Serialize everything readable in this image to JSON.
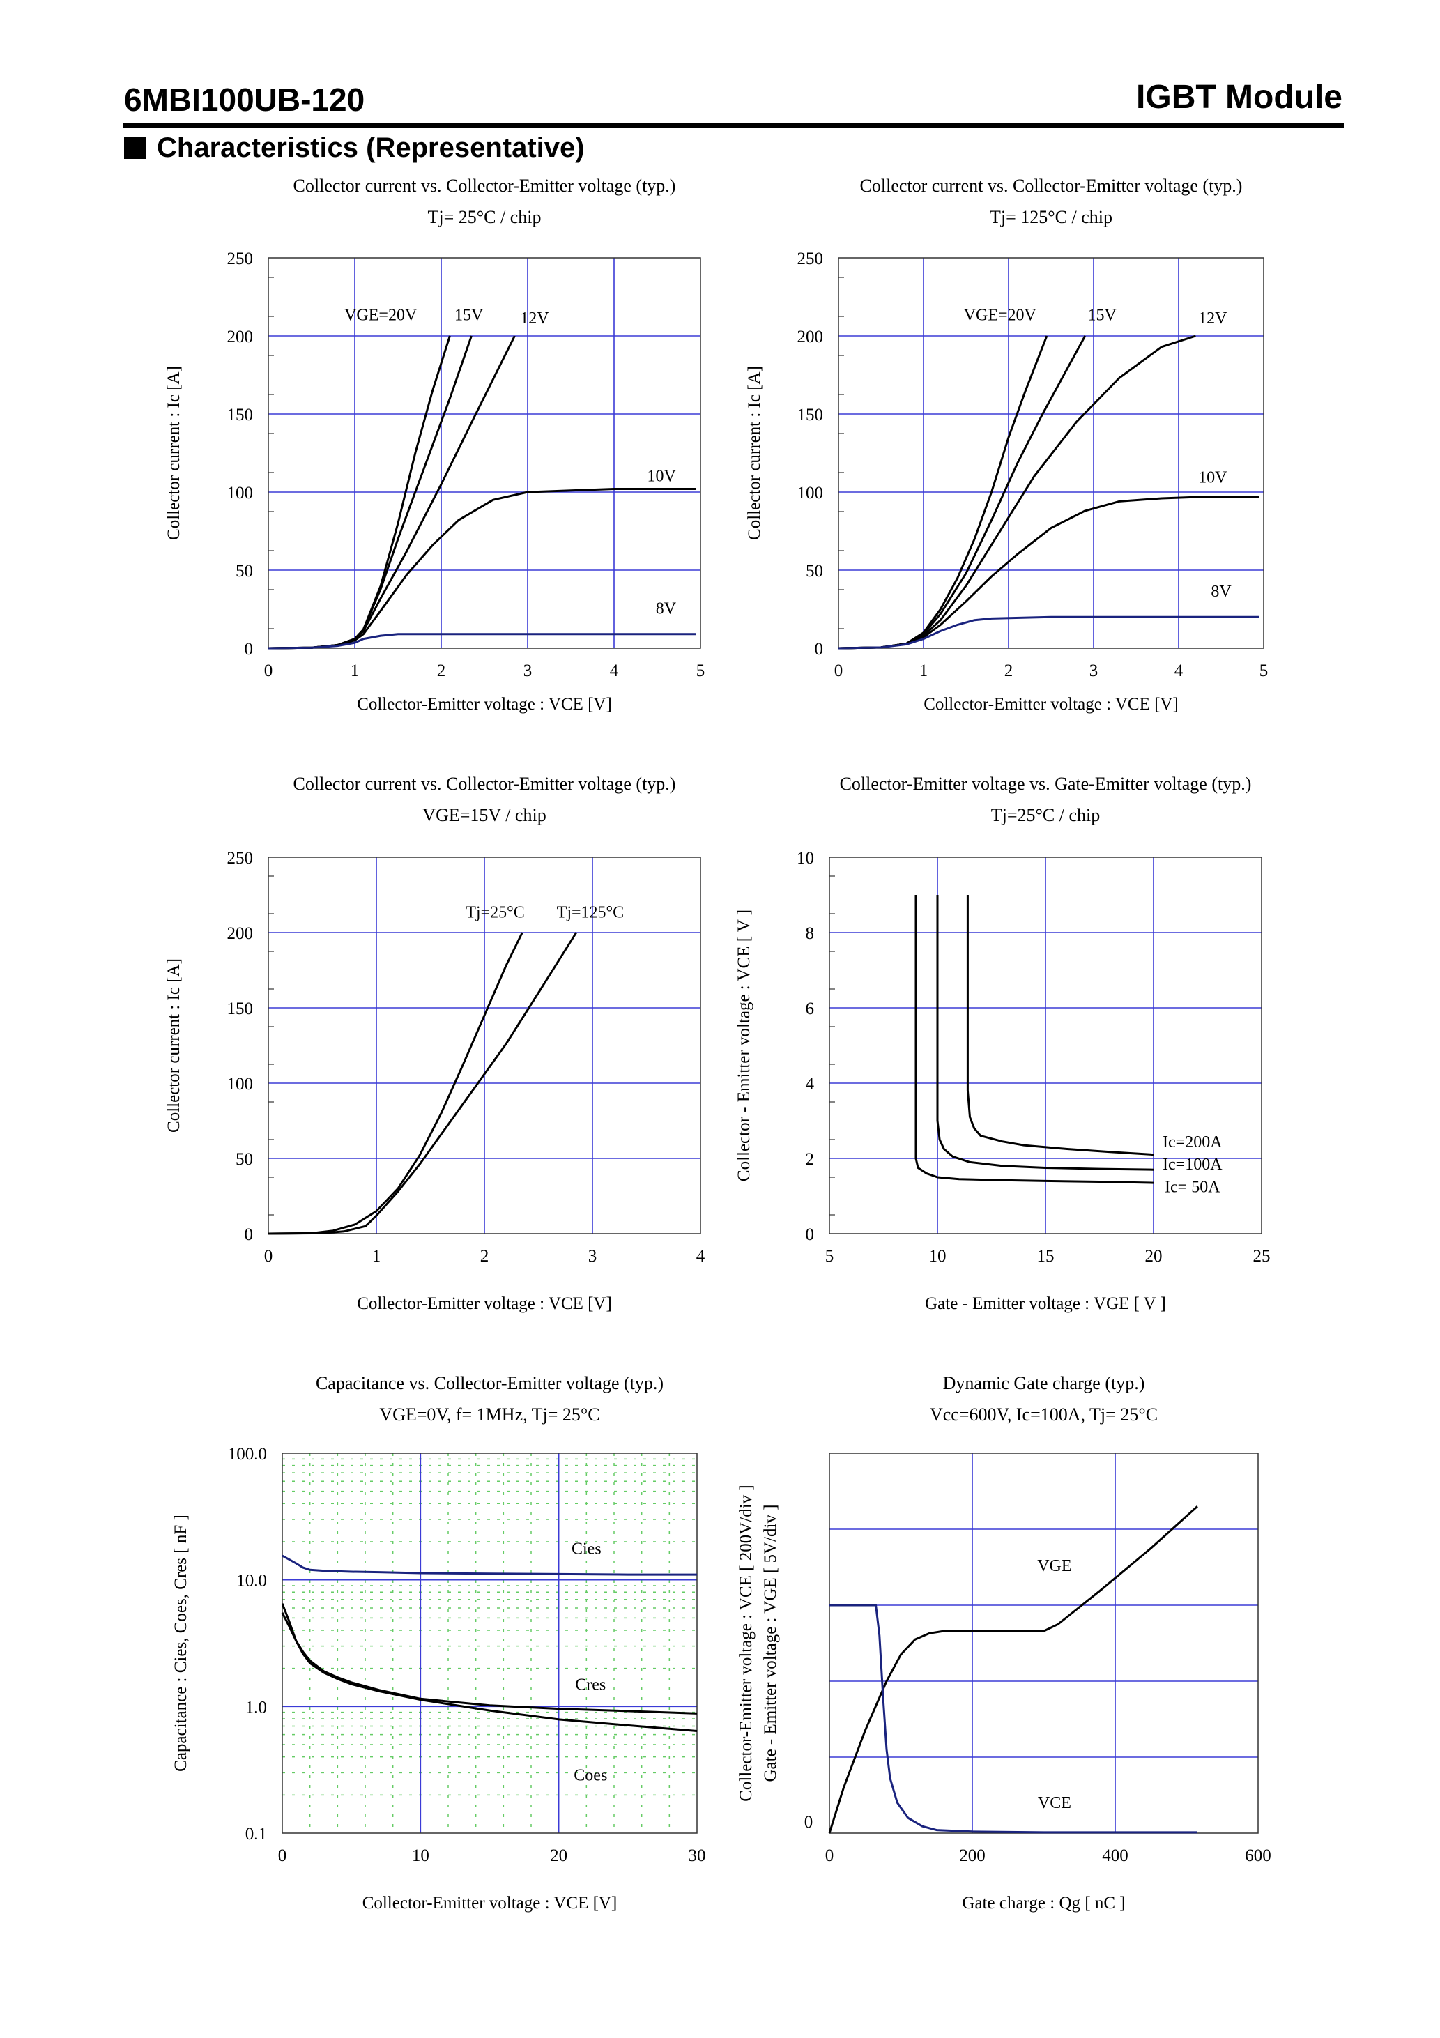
{
  "header": {
    "part_number": "6MBI100UB-120",
    "device_type": "IGBT Module",
    "section_title": "Characteristics (Representative)"
  },
  "colors": {
    "grid": "#3b3bd6",
    "curve": "#000000",
    "curve_blue": "#1a237e",
    "minor_grid": "#66cc66"
  },
  "chart_data": [
    {
      "id": "c1",
      "type": "line",
      "title": "Collector current vs. Collector-Emitter voltage (typ.)",
      "subtitle": "Tj= 25°C / chip",
      "xlabel": "Collector-Emitter voltage : VCE [V]",
      "ylabel": "Collector current : Ic [A]",
      "xlim": [
        0,
        5
      ],
      "ylim": [
        0,
        250
      ],
      "xticks": [
        "0",
        "1",
        "2",
        "3",
        "4",
        "5"
      ],
      "yticks": [
        "0",
        "50",
        "100",
        "150",
        "200",
        "250"
      ],
      "series": [
        {
          "name": "VGE=20V",
          "x": [
            0,
            0.5,
            0.8,
            1.0,
            1.1,
            1.3,
            1.5,
            1.7,
            1.9,
            2.1
          ],
          "y": [
            0,
            0.3,
            2,
            6,
            12,
            40,
            80,
            125,
            165,
            200
          ]
        },
        {
          "name": "15V",
          "x": [
            0,
            0.5,
            0.8,
            1.0,
            1.1,
            1.3,
            1.5,
            1.8,
            2.1,
            2.35
          ],
          "y": [
            0,
            0.3,
            2,
            6,
            12,
            38,
            70,
            115,
            160,
            200
          ]
        },
        {
          "name": "12V",
          "x": [
            0,
            0.5,
            0.8,
            1.0,
            1.1,
            1.3,
            1.6,
            2.0,
            2.4,
            2.85
          ],
          "y": [
            0,
            0.3,
            2,
            6,
            11,
            32,
            62,
            105,
            150,
            200
          ]
        },
        {
          "name": "10V",
          "x": [
            0,
            0.5,
            0.8,
            1.0,
            1.1,
            1.3,
            1.6,
            1.9,
            2.2,
            2.6,
            3.0,
            3.5,
            4.0,
            4.5,
            4.95
          ],
          "y": [
            0,
            0.3,
            2,
            5,
            9,
            24,
            47,
            66,
            82,
            95,
            100,
            101,
            102,
            102,
            102
          ]
        },
        {
          "name": "8V",
          "x": [
            0,
            0.5,
            0.8,
            1.0,
            1.1,
            1.3,
            1.5,
            2,
            3,
            4,
            4.95
          ],
          "y": [
            0,
            0.3,
            1.5,
            3.5,
            6,
            8,
            9,
            9,
            9,
            9,
            9
          ]
        }
      ],
      "labels": [
        {
          "text": "VGE=20V",
          "x": 1.3,
          "y": 210
        },
        {
          "text": "15V",
          "x": 2.32,
          "y": 210
        },
        {
          "text": "12V",
          "x": 3.08,
          "y": 208
        },
        {
          "text": "10V",
          "x": 4.55,
          "y": 107
        },
        {
          "text": "8V",
          "x": 4.6,
          "y": 22
        }
      ]
    },
    {
      "id": "c2",
      "type": "line",
      "title": "Collector current vs. Collector-Emitter voltage (typ.)",
      "subtitle": "Tj= 125°C / chip",
      "xlabel": "Collector-Emitter voltage : VCE [V]",
      "ylabel": "Collector current : Ic [A]",
      "xlim": [
        0,
        5
      ],
      "ylim": [
        0,
        250
      ],
      "xticks": [
        "0",
        "1",
        "2",
        "3",
        "4",
        "5"
      ],
      "yticks": [
        "0",
        "50",
        "100",
        "150",
        "200",
        "250"
      ],
      "series": [
        {
          "name": "VGE=20V",
          "x": [
            0,
            0.5,
            0.8,
            1.0,
            1.2,
            1.4,
            1.6,
            1.8,
            2.0,
            2.2,
            2.45
          ],
          "y": [
            0,
            0.5,
            3,
            10,
            25,
            45,
            70,
            100,
            135,
            165,
            200
          ]
        },
        {
          "name": "15V",
          "x": [
            0,
            0.5,
            0.8,
            1.0,
            1.2,
            1.5,
            1.8,
            2.1,
            2.4,
            2.7,
            2.9
          ],
          "y": [
            0,
            0.5,
            3,
            9,
            22,
            48,
            82,
            118,
            150,
            180,
            200
          ]
        },
        {
          "name": "12V",
          "x": [
            0,
            0.5,
            0.8,
            1.0,
            1.2,
            1.5,
            1.9,
            2.3,
            2.8,
            3.3,
            3.8,
            4.2
          ],
          "y": [
            0,
            0.5,
            3,
            8,
            18,
            40,
            75,
            110,
            145,
            173,
            193,
            200
          ]
        },
        {
          "name": "10V",
          "x": [
            0,
            0.5,
            0.8,
            1.0,
            1.2,
            1.5,
            1.8,
            2.1,
            2.5,
            2.9,
            3.3,
            3.8,
            4.3,
            4.95
          ],
          "y": [
            0,
            0.5,
            3,
            7,
            15,
            30,
            46,
            60,
            77,
            88,
            94,
            96,
            97,
            97
          ]
        },
        {
          "name": "8V",
          "x": [
            0,
            0.5,
            0.8,
            1.0,
            1.2,
            1.4,
            1.6,
            1.8,
            2.5,
            3.5,
            4.95
          ],
          "y": [
            0,
            0.5,
            2.5,
            6,
            11,
            15,
            18,
            19,
            20,
            20,
            20
          ]
        }
      ],
      "labels": [
        {
          "text": "VGE=20V",
          "x": 1.9,
          "y": 210
        },
        {
          "text": "15V",
          "x": 3.1,
          "y": 210
        },
        {
          "text": "12V",
          "x": 4.4,
          "y": 208
        },
        {
          "text": "10V",
          "x": 4.4,
          "y": 106
        },
        {
          "text": "8V",
          "x": 4.5,
          "y": 33
        }
      ]
    },
    {
      "id": "c3",
      "type": "line",
      "title": "Collector current vs. Collector-Emitter voltage (typ.)",
      "subtitle": "VGE=15V / chip",
      "xlabel": "Collector-Emitter voltage : VCE [V]",
      "ylabel": "Collector current : Ic [A]",
      "xlim": [
        0,
        4
      ],
      "ylim": [
        0,
        250
      ],
      "xticks": [
        "0",
        "1",
        "2",
        "3",
        "4"
      ],
      "yticks": [
        "0",
        "50",
        "100",
        "150",
        "200",
        "250"
      ],
      "series": [
        {
          "name": "Tj=25°C",
          "x": [
            0,
            0.4,
            0.6,
            0.8,
            1.0,
            1.2,
            1.4,
            1.6,
            1.8,
            2.0,
            2.2,
            2.35
          ],
          "y": [
            0,
            0.3,
            2,
            6,
            15,
            30,
            52,
            80,
            112,
            145,
            178,
            200
          ]
        },
        {
          "name": "Tj=125°C",
          "x": [
            0,
            0.5,
            0.7,
            0.9,
            1.0,
            1.2,
            1.4,
            1.6,
            1.9,
            2.2,
            2.5,
            2.85
          ],
          "y": [
            0,
            0.3,
            1.5,
            5,
            12,
            28,
            46,
            66,
            96,
            126,
            160,
            200
          ]
        }
      ],
      "labels": [
        {
          "text": "Tj=25°C",
          "x": 2.1,
          "y": 210
        },
        {
          "text": "Tj=125°C",
          "x": 2.98,
          "y": 210
        }
      ]
    },
    {
      "id": "c4",
      "type": "line",
      "title": "Collector-Emitter voltage vs. Gate-Emitter voltage (typ.)",
      "subtitle": "Tj=25°C / chip",
      "xlabel": "Gate - Emitter voltage : VGE [ V ]",
      "ylabel": "Collector - Emitter voltage : VCE [ V ]",
      "xlim": [
        5,
        25
      ],
      "ylim": [
        0,
        10
      ],
      "xticks": [
        "5",
        "10",
        "15",
        "20",
        "25"
      ],
      "yticks": [
        "0",
        "2",
        "4",
        "6",
        "8",
        "10"
      ],
      "series": [
        {
          "name": "Ic=200A",
          "x": [
            11.4,
            11.4,
            11.5,
            11.7,
            12,
            13,
            14,
            16,
            18,
            20
          ],
          "y": [
            9,
            3.8,
            3.1,
            2.8,
            2.6,
            2.45,
            2.35,
            2.25,
            2.17,
            2.1
          ]
        },
        {
          "name": "Ic=100A",
          "x": [
            10,
            10,
            10.1,
            10.3,
            10.7,
            11.5,
            13,
            15,
            17.5,
            20
          ],
          "y": [
            9,
            3.0,
            2.5,
            2.25,
            2.05,
            1.9,
            1.8,
            1.75,
            1.72,
            1.7
          ]
        },
        {
          "name": "Ic= 50A",
          "x": [
            9,
            9,
            9.1,
            9.5,
            10,
            11,
            13,
            15,
            17.5,
            20
          ],
          "y": [
            9,
            2.0,
            1.75,
            1.6,
            1.5,
            1.45,
            1.42,
            1.4,
            1.38,
            1.35
          ]
        }
      ],
      "labels": [
        {
          "text": "Ic=200A",
          "x": 21.8,
          "y": 2.3
        },
        {
          "text": "Ic=100A",
          "x": 21.8,
          "y": 1.7
        },
        {
          "text": "Ic= 50A",
          "x": 21.8,
          "y": 1.1
        }
      ]
    },
    {
      "id": "c5",
      "type": "line",
      "title": "Capacitance vs. Collector-Emitter voltage (typ.)",
      "subtitle": "VGE=0V, f= 1MHz, Tj= 25°C",
      "xlabel": "Collector-Emitter voltage : VCE [V]",
      "ylabel": "Capacitance : Cies, Coes, Cres [ nF ]",
      "yscale": "log",
      "xlim": [
        0,
        30
      ],
      "ylim": [
        0.1,
        100
      ],
      "xticks": [
        "0",
        "10",
        "20",
        "30"
      ],
      "yticks": [
        "0.1",
        "1.0",
        "10.0",
        "100.0"
      ],
      "series": [
        {
          "name": "Cies",
          "x": [
            0,
            0.5,
            1,
            1.5,
            2,
            3,
            5,
            7,
            10,
            15,
            20,
            25,
            30
          ],
          "y": [
            15.5,
            14.5,
            13.5,
            12.5,
            12,
            11.8,
            11.6,
            11.5,
            11.3,
            11.2,
            11.1,
            11.0,
            11.0
          ]
        },
        {
          "name": "Cres",
          "x": [
            0,
            0.5,
            1,
            1.5,
            2,
            3,
            4,
            5,
            7,
            10,
            15,
            20,
            25,
            30
          ],
          "y": [
            5.5,
            4.3,
            3.3,
            2.7,
            2.3,
            1.9,
            1.7,
            1.55,
            1.35,
            1.15,
            1.02,
            0.96,
            0.92,
            0.88
          ]
        },
        {
          "name": "Coes",
          "x": [
            0,
            0.5,
            1,
            1.5,
            2,
            3,
            4,
            5,
            7,
            10,
            15,
            20,
            25,
            30
          ],
          "y": [
            6.5,
            4.7,
            3.3,
            2.6,
            2.2,
            1.85,
            1.65,
            1.5,
            1.32,
            1.13,
            0.93,
            0.79,
            0.71,
            0.64
          ]
        }
      ],
      "labels": [
        {
          "text": "Cies",
          "x": 22,
          "y": 16
        },
        {
          "text": "Cres",
          "x": 22.3,
          "y": 1.35
        },
        {
          "text": "Coes",
          "x": 22.3,
          "y": 0.26
        }
      ]
    },
    {
      "id": "c6",
      "type": "line",
      "title": "Dynamic Gate charge (typ.)",
      "subtitle": "Vcc=600V, Ic=100A, Tj= 25°C",
      "xlabel": "Gate charge : Qg [ nC ]",
      "ylabel": "Collector-Emitter voltage : VCE [ 200V/div ]",
      "ylabel2": "Gate - Emitter voltage : VGE [ 5V/div ]",
      "xlim": [
        0,
        600
      ],
      "ylim": [
        0,
        5
      ],
      "xticks": [
        "0",
        "200",
        "400",
        "600"
      ],
      "yticks": [
        "0"
      ],
      "series": [
        {
          "name": "VGE",
          "x": [
            0,
            20,
            50,
            80,
            100,
            120,
            140,
            160,
            200,
            250,
            300,
            320,
            380,
            450,
            515
          ],
          "y": [
            0,
            0.6,
            1.35,
            2.0,
            2.35,
            2.55,
            2.63,
            2.66,
            2.66,
            2.66,
            2.66,
            2.75,
            3.2,
            3.75,
            4.3
          ]
        },
        {
          "name": "VCE",
          "x": [
            0,
            65,
            70,
            75,
            80,
            85,
            95,
            110,
            130,
            150,
            200,
            300,
            400,
            515
          ],
          "y": [
            3.0,
            3.0,
            2.6,
            1.8,
            1.1,
            0.72,
            0.4,
            0.2,
            0.09,
            0.04,
            0.02,
            0.01,
            0.01,
            0.01
          ]
        }
      ],
      "labels": [
        {
          "text": "VGE",
          "x": 315,
          "y": 3.45
        },
        {
          "text": "VCE",
          "x": 315,
          "y": 0.33
        }
      ]
    }
  ]
}
